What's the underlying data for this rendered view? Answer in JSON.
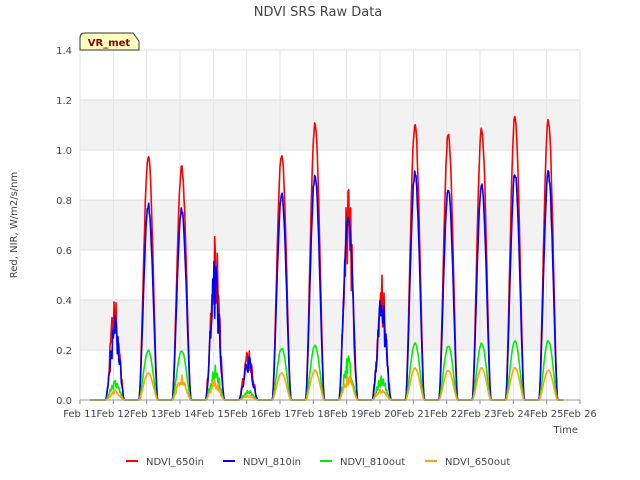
{
  "chart_data": {
    "type": "line",
    "title": "NDVI SRS Raw Data",
    "xlabel": "Time",
    "ylabel": "Red, NIR, W/m2/s/nm",
    "ylim": [
      0,
      1.4
    ],
    "xlim": [
      0,
      15
    ],
    "yticks": [
      0.0,
      0.2,
      0.4,
      0.6,
      0.8,
      1.0,
      1.2,
      1.4
    ],
    "ytick_labels": [
      "0.0",
      "0.2",
      "0.4",
      "0.6",
      "0.8",
      "1.0",
      "1.2",
      "1.4"
    ],
    "xtick_labels": [
      "Feb 11",
      "Feb 12",
      "Feb 13",
      "Feb 14",
      "Feb 15",
      "Feb 16",
      "Feb 17",
      "Feb 18",
      "Feb 19",
      "Feb 20",
      "Feb 21",
      "Feb 22",
      "Feb 23",
      "Feb 24",
      "Feb 25",
      "Feb 26"
    ],
    "annotation": "VR_met",
    "legend_position": "bottom-center",
    "grid": true,
    "days": [
      1,
      2,
      3,
      4,
      5,
      6,
      7,
      8,
      9,
      10,
      11,
      12,
      13,
      14
    ],
    "series": [
      {
        "name": "NDVI_650in",
        "color": "#ff0000",
        "daily_peaks": [
          0.43,
          0.99,
          0.94,
          0.7,
          0.21,
          1.0,
          1.12,
          0.89,
          0.53,
          1.12,
          1.08,
          1.1,
          1.15,
          1.13
        ]
      },
      {
        "name": "NDVI_810in",
        "color": "#0000ff",
        "daily_peaks": [
          0.35,
          0.79,
          0.77,
          0.58,
          0.18,
          0.83,
          0.91,
          0.74,
          0.45,
          0.92,
          0.86,
          0.88,
          0.92,
          0.92
        ]
      },
      {
        "name": "NDVI_810out",
        "color": "#00ee00",
        "daily_peaks": [
          0.08,
          0.2,
          0.2,
          0.14,
          0.04,
          0.21,
          0.22,
          0.18,
          0.1,
          0.23,
          0.22,
          0.23,
          0.24,
          0.24
        ]
      },
      {
        "name": "NDVI_650out",
        "color": "#ffa500",
        "daily_peaks": [
          0.04,
          0.11,
          0.1,
          0.08,
          0.02,
          0.11,
          0.12,
          0.1,
          0.05,
          0.13,
          0.12,
          0.13,
          0.13,
          0.12
        ]
      }
    ]
  }
}
